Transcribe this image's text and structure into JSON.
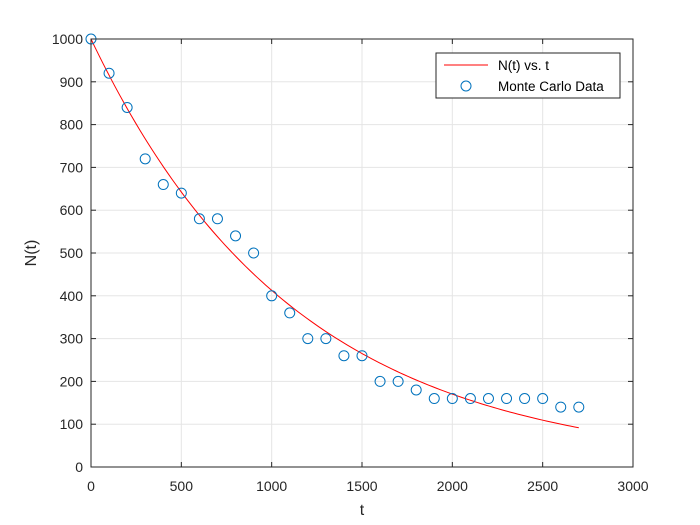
{
  "chart_data": {
    "type": "scatter",
    "xlabel": "t",
    "ylabel": "N(t)",
    "xlim": [
      0,
      3000
    ],
    "ylim": [
      0,
      1000
    ],
    "xticks": [
      0,
      500,
      1000,
      1500,
      2000,
      2500,
      3000
    ],
    "yticks": [
      0,
      100,
      200,
      300,
      400,
      500,
      600,
      700,
      800,
      900,
      1000
    ],
    "grid": true,
    "legend_position": "top-right",
    "series": [
      {
        "name": "N(t) vs. t",
        "kind": "line",
        "color": "#ff0000",
        "function": "N(t) = 1000 * exp(-0.000885 * t)",
        "x_range": [
          0,
          2700
        ]
      },
      {
        "name": "Monte Carlo Data",
        "kind": "markers",
        "marker": "circle-open",
        "color": "#0072bd",
        "x": [
          0,
          100,
          200,
          300,
          400,
          500,
          600,
          700,
          800,
          900,
          1000,
          1100,
          1200,
          1300,
          1400,
          1500,
          1600,
          1700,
          1800,
          1900,
          2000,
          2100,
          2200,
          2300,
          2400,
          2500,
          2600,
          2700
        ],
        "y": [
          1000,
          920,
          840,
          720,
          660,
          640,
          580,
          580,
          540,
          500,
          400,
          360,
          300,
          300,
          260,
          260,
          200,
          200,
          180,
          160,
          160,
          160,
          160,
          160,
          160,
          160,
          140,
          140
        ]
      }
    ],
    "colors": {
      "axis": "#262626",
      "grid": "#e5e5e5",
      "background": "#ffffff"
    }
  }
}
